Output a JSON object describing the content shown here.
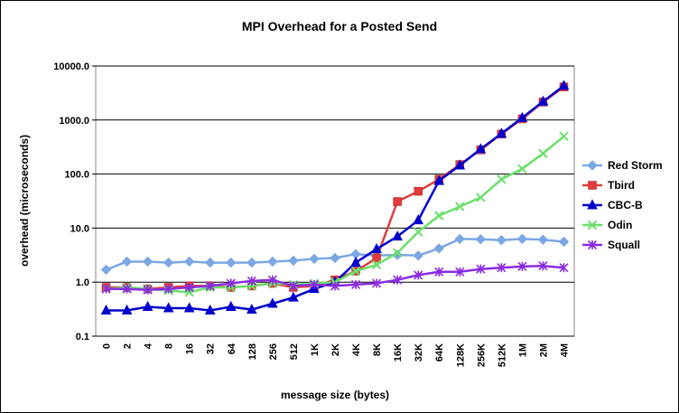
{
  "chart_data": {
    "type": "line",
    "title": "MPI Overhead for a Posted Send",
    "xlabel": "message size (bytes)",
    "ylabel": "overhead (microseconds)",
    "yscale": "log",
    "ylim": [
      0.1,
      10000
    ],
    "ytick_labels": [
      "0.1",
      "1.0",
      "10.0",
      "100.0",
      "1000.0",
      "10000.0"
    ],
    "grid": "horizontal",
    "legend_position": "right",
    "categories": [
      "0",
      "2",
      "4",
      "8",
      "16",
      "32",
      "64",
      "128",
      "256",
      "512",
      "1K",
      "2K",
      "4K",
      "8K",
      "16K",
      "32K",
      "64K",
      "128K",
      "256K",
      "512K",
      "1M",
      "2M",
      "4M"
    ],
    "series": [
      {
        "name": "Red Storm",
        "color": "#7BA7E3",
        "marker": "diamond",
        "values": [
          1.7,
          2.4,
          2.4,
          2.3,
          2.4,
          2.3,
          2.3,
          2.3,
          2.4,
          2.5,
          2.7,
          2.8,
          3.3,
          3.1,
          3.2,
          3.1,
          4.2,
          6.3,
          6.2,
          6.0,
          6.3,
          6.1,
          5.6
        ]
      },
      {
        "name": "Tbird",
        "color": "#E03C3C",
        "marker": "square",
        "values": [
          0.8,
          0.8,
          0.75,
          0.8,
          0.85,
          0.85,
          0.8,
          0.85,
          0.95,
          0.8,
          0.85,
          1.1,
          1.6,
          2.8,
          31,
          48,
          80,
          150,
          280,
          550,
          1050,
          2150,
          4100
        ]
      },
      {
        "name": "CBC-B",
        "color": "#0000CC",
        "marker": "triangle",
        "values": [
          0.3,
          0.3,
          0.35,
          0.33,
          0.33,
          0.3,
          0.35,
          0.31,
          0.4,
          0.52,
          0.75,
          1.0,
          2.3,
          4.1,
          7.0,
          14,
          75,
          145,
          290,
          560,
          1100,
          2200,
          4300
        ]
      },
      {
        "name": "Odin",
        "color": "#6BE06B",
        "marker": "x",
        "values": [
          0.75,
          0.8,
          0.75,
          0.7,
          0.65,
          0.8,
          0.8,
          0.85,
          0.95,
          0.9,
          0.95,
          1.0,
          1.6,
          2.1,
          3.5,
          8.5,
          17,
          25,
          37,
          80,
          125,
          240,
          500
        ]
      },
      {
        "name": "Squall",
        "color": "#8B2BE2",
        "marker": "star",
        "values": [
          0.75,
          0.75,
          0.72,
          0.75,
          0.8,
          0.85,
          0.95,
          1.05,
          1.1,
          0.85,
          0.9,
          0.85,
          0.9,
          0.95,
          1.1,
          1.35,
          1.55,
          1.55,
          1.75,
          1.85,
          1.95,
          2.0,
          1.85
        ]
      }
    ]
  }
}
